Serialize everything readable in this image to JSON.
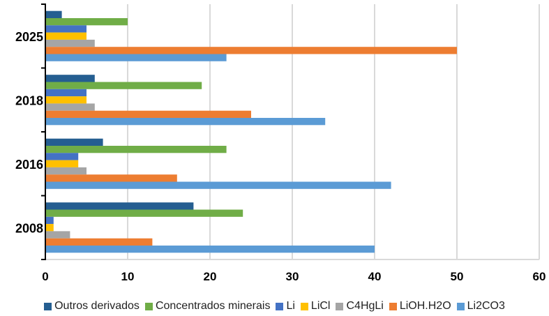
{
  "chart_data": {
    "type": "bar",
    "orientation": "horizontal",
    "title": "",
    "xlabel": "",
    "ylabel": "",
    "categories": [
      "2025",
      "2018",
      "2016",
      "2008"
    ],
    "xlim": [
      0,
      60
    ],
    "xticks": [
      "0",
      "10",
      "20",
      "30",
      "40",
      "50",
      "60"
    ],
    "grid": true,
    "legend_position": "bottom",
    "series": [
      {
        "name": "Outros derivados",
        "color": "#255E91",
        "values": [
          2,
          6,
          7,
          18
        ]
      },
      {
        "name": "Concentrados minerais",
        "color": "#70AD47",
        "values": [
          10,
          19,
          22,
          24
        ]
      },
      {
        "name": "Li",
        "color": "#4472C4",
        "values": [
          5,
          5,
          4,
          1
        ]
      },
      {
        "name": "LiCl",
        "color": "#FFC000",
        "values": [
          5,
          5,
          4,
          1
        ]
      },
      {
        "name": "C4HgLi",
        "color": "#A5A5A5",
        "values": [
          6,
          6,
          5,
          3
        ]
      },
      {
        "name": "LiOH.H2O",
        "color": "#ED7D31",
        "values": [
          50,
          25,
          16,
          13
        ]
      },
      {
        "name": "Li2CO3",
        "color": "#5B9BD5",
        "values": [
          22,
          34,
          42,
          40
        ]
      }
    ]
  }
}
